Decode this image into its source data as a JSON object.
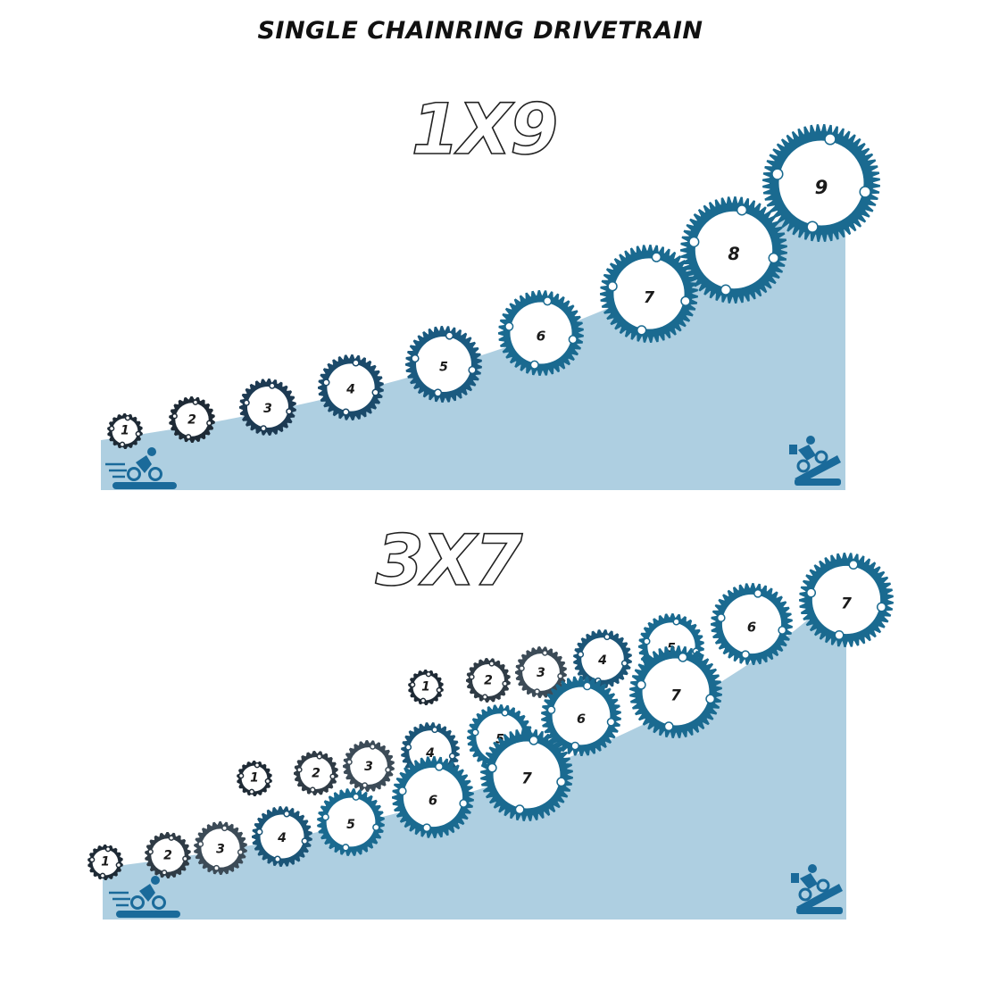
{
  "title": "SINGLE CHAINRING DRIVETRAIN",
  "colors": {
    "hill": "#aecfe1",
    "gear_dark": "#1e2a35",
    "gear_gray": "#3c4b57",
    "gear_blue": "#1a6a90",
    "icon_blue": "#1a6a9a"
  },
  "panels": [
    {
      "heading": "1X9",
      "icons": [
        "fast-cyclist-icon",
        "climbing-cyclist-icon"
      ],
      "gears": [
        {
          "label": "1"
        },
        {
          "label": "2"
        },
        {
          "label": "3"
        },
        {
          "label": "4"
        },
        {
          "label": "5"
        },
        {
          "label": "6"
        },
        {
          "label": "7"
        },
        {
          "label": "8"
        },
        {
          "label": "9"
        }
      ]
    },
    {
      "heading": "3X7",
      "icons": [
        "fast-cyclist-icon",
        "climbing-cyclist-icon"
      ],
      "rows": [
        {
          "gears": [
            {
              "label": "1"
            },
            {
              "label": "2"
            },
            {
              "label": "3"
            },
            {
              "label": "4"
            },
            {
              "label": "5"
            },
            {
              "label": "6"
            },
            {
              "label": "7"
            }
          ]
        },
        {
          "gears": [
            {
              "label": "1"
            },
            {
              "label": "2"
            },
            {
              "label": "3"
            },
            {
              "label": "4"
            },
            {
              "label": "5"
            },
            {
              "label": "6"
            },
            {
              "label": "7"
            }
          ]
        },
        {
          "gears": [
            {
              "label": "1"
            },
            {
              "label": "2"
            },
            {
              "label": "3"
            },
            {
              "label": "4"
            },
            {
              "label": "5"
            },
            {
              "label": "6"
            },
            {
              "label": "7"
            }
          ]
        }
      ]
    }
  ]
}
